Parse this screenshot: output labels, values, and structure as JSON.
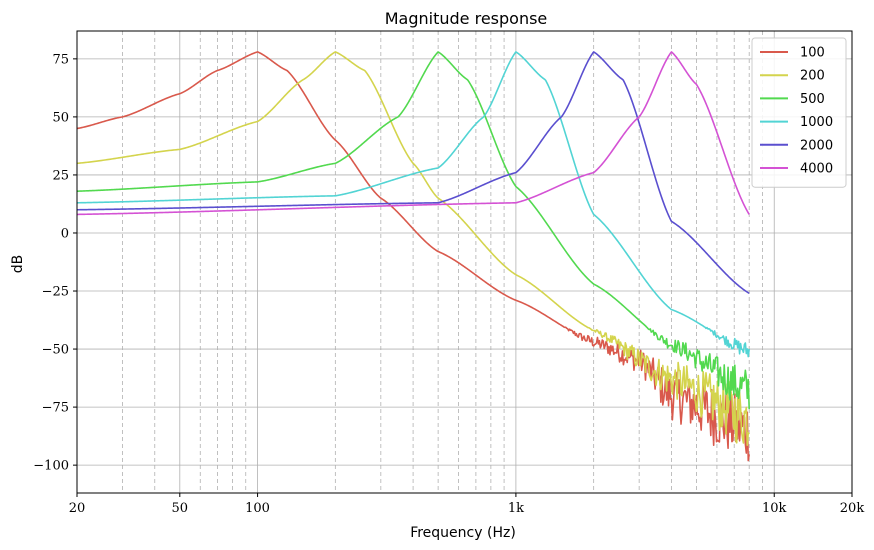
{
  "chart_data": {
    "type": "line",
    "title": "Magnitude response",
    "xlabel": "Frequency (Hz)",
    "ylabel": "dB",
    "xscale": "log",
    "xlim": [
      20,
      20000
    ],
    "ylim": [
      -112,
      87
    ],
    "x_ticks": [
      {
        "value": 20,
        "label": "20"
      },
      {
        "value": 50,
        "label": "50"
      },
      {
        "value": 100,
        "label": "100"
      },
      {
        "value": 1000,
        "label": "1k"
      },
      {
        "value": 10000,
        "label": "10k"
      },
      {
        "value": 20000,
        "label": "20k"
      }
    ],
    "y_ticks": [
      {
        "value": 75,
        "label": "75"
      },
      {
        "value": 50,
        "label": "50"
      },
      {
        "value": 25,
        "label": "25"
      },
      {
        "value": 0,
        "label": "0"
      },
      {
        "value": -25,
        "label": "−25"
      },
      {
        "value": -50,
        "label": "−50"
      },
      {
        "value": -75,
        "label": "−75"
      },
      {
        "value": -100,
        "label": "−100"
      }
    ],
    "x_minor_gridlines": [
      30,
      40,
      60,
      70,
      80,
      90,
      200,
      300,
      400,
      500,
      600,
      700,
      800,
      900,
      2000,
      3000,
      4000,
      5000,
      6000,
      7000,
      8000,
      9000
    ],
    "grid": {
      "major_y": true,
      "major_x": true,
      "minor_x": true
    },
    "legend_position": "top-right",
    "series": [
      {
        "name": "100",
        "color": "#d9594c",
        "peak_hz": 100,
        "peak_db": 78,
        "low_db": 42,
        "end_db": -85,
        "points": [
          [
            20,
            45
          ],
          [
            30,
            50
          ],
          [
            50,
            60
          ],
          [
            70,
            70
          ],
          [
            100,
            78
          ],
          [
            130,
            70
          ],
          [
            200,
            40
          ],
          [
            300,
            15
          ],
          [
            500,
            -8
          ],
          [
            1000,
            -29
          ],
          [
            2000,
            -47
          ],
          [
            3000,
            -55
          ],
          [
            4000,
            -70
          ],
          [
            8000,
            -85
          ]
        ]
      },
      {
        "name": "200",
        "color": "#d4d44d",
        "peak_hz": 200,
        "peak_db": 78,
        "low_db": 30,
        "end_db": -80,
        "points": [
          [
            20,
            30
          ],
          [
            50,
            36
          ],
          [
            100,
            48
          ],
          [
            150,
            66
          ],
          [
            200,
            78
          ],
          [
            260,
            70
          ],
          [
            400,
            30
          ],
          [
            500,
            15
          ],
          [
            1000,
            -18
          ],
          [
            2000,
            -42
          ],
          [
            4000,
            -63
          ],
          [
            8000,
            -80
          ]
        ]
      },
      {
        "name": "500",
        "color": "#52d94f",
        "peak_hz": 500,
        "peak_db": 78,
        "low_db": 18,
        "end_db": -68,
        "points": [
          [
            20,
            18
          ],
          [
            100,
            22
          ],
          [
            200,
            30
          ],
          [
            350,
            50
          ],
          [
            500,
            78
          ],
          [
            650,
            66
          ],
          [
            1000,
            20
          ],
          [
            2000,
            -22
          ],
          [
            4000,
            -48
          ],
          [
            8000,
            -68
          ]
        ]
      },
      {
        "name": "1000",
        "color": "#52d4d4",
        "peak_hz": 1000,
        "peak_db": 78,
        "low_db": 13,
        "end_db": -51,
        "points": [
          [
            20,
            13
          ],
          [
            200,
            16
          ],
          [
            500,
            28
          ],
          [
            750,
            50
          ],
          [
            1000,
            78
          ],
          [
            1300,
            66
          ],
          [
            2000,
            8
          ],
          [
            4000,
            -33
          ],
          [
            8000,
            -51
          ]
        ]
      },
      {
        "name": "2000",
        "color": "#5a4fcf",
        "peak_hz": 2000,
        "peak_db": 78,
        "low_db": 10,
        "end_db": -26,
        "points": [
          [
            20,
            10
          ],
          [
            500,
            13
          ],
          [
            1000,
            26
          ],
          [
            1500,
            50
          ],
          [
            2000,
            78
          ],
          [
            2600,
            66
          ],
          [
            4000,
            5
          ],
          [
            8000,
            -26
          ]
        ]
      },
      {
        "name": "4000",
        "color": "#d452d4",
        "peak_hz": 4000,
        "peak_db": 78,
        "low_db": 8,
        "end_db": 8,
        "points": [
          [
            20,
            8
          ],
          [
            1000,
            13
          ],
          [
            2000,
            26
          ],
          [
            3000,
            50
          ],
          [
            4000,
            78
          ],
          [
            5000,
            64
          ],
          [
            8000,
            8
          ]
        ]
      }
    ]
  }
}
